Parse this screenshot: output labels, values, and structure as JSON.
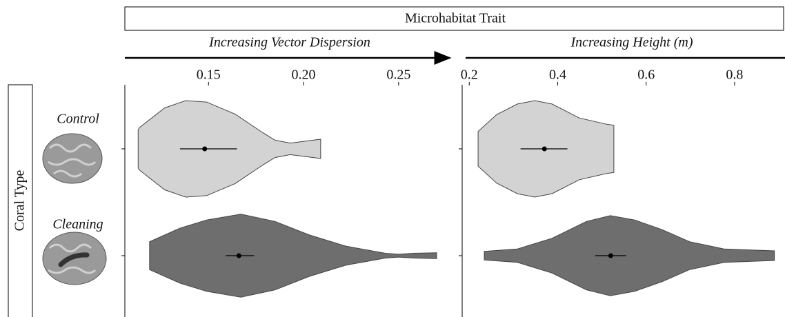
{
  "title": "Microhabitat Trait",
  "ylabel": "Coral Type",
  "categories": [
    "Control",
    "Cleaning"
  ],
  "chart_data": [
    {
      "type": "violin",
      "xlabel": "Increasing Vector Dispersion",
      "xlim": [
        0.106,
        0.278
      ],
      "xticks": [
        0.15,
        {
          "value": 0.2,
          "label": "0.20"
        },
        0.25
      ],
      "violins": [
        {
          "color": "#d3d3d3",
          "x": [
            0.113,
            0.114,
            0.127,
            0.138,
            0.149,
            0.164,
            0.178,
            0.185,
            0.193,
            0.203,
            0.209
          ],
          "density": [
            0.4,
            0.45,
            0.85,
            1.0,
            0.97,
            0.72,
            0.35,
            0.18,
            0.12,
            0.17,
            0.2
          ],
          "mean": 0.148,
          "ci": [
            0.135,
            0.165
          ]
        },
        {
          "color": "#6e6e6e",
          "x": [
            0.119,
            0.135,
            0.149,
            0.167,
            0.185,
            0.203,
            0.222,
            0.243,
            0.25,
            0.258,
            0.27
          ],
          "density": [
            0.29,
            0.57,
            0.74,
            0.86,
            0.71,
            0.43,
            0.2,
            0.05,
            0.03,
            0.05,
            0.06
          ],
          "mean": 0.166,
          "ci": [
            0.159,
            0.174
          ]
        }
      ]
    },
    {
      "type": "violin",
      "xlabel": "Increasing Height (m)",
      "xlim": [
        0.184,
        0.914
      ],
      "xticks": [
        0.2,
        0.4,
        0.6,
        0.8
      ],
      "violins": [
        {
          "color": "#d3d3d3",
          "x": [
            0.22,
            0.262,
            0.309,
            0.348,
            0.387,
            0.449,
            0.511,
            0.527
          ],
          "density": [
            0.36,
            0.71,
            0.93,
            1.0,
            0.93,
            0.64,
            0.51,
            0.49
          ],
          "mean": 0.37,
          "ci": [
            0.316,
            0.422
          ]
        },
        {
          "color": "#6e6e6e",
          "x": [
            0.234,
            0.309,
            0.387,
            0.465,
            0.519,
            0.574,
            0.636,
            0.698,
            0.776,
            0.89
          ],
          "density": [
            0.09,
            0.14,
            0.36,
            0.71,
            0.83,
            0.74,
            0.54,
            0.29,
            0.14,
            0.1
          ],
          "mean": 0.52,
          "ci": [
            0.485,
            0.555
          ]
        }
      ]
    }
  ]
}
